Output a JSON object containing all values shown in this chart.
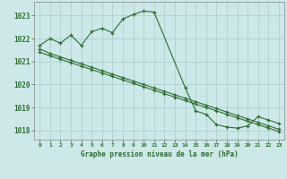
{
  "title": "Graphe pression niveau de la mer (hPa)",
  "bg_color": "#cce8e8",
  "grid_color": "#aacccc",
  "line_color": "#2d6e2d",
  "xlim": [
    -0.5,
    23.5
  ],
  "ylim": [
    1017.6,
    1023.6
  ],
  "yticks": [
    1018,
    1019,
    1020,
    1021,
    1022,
    1023
  ],
  "xticks": [
    0,
    1,
    2,
    3,
    4,
    5,
    6,
    7,
    8,
    9,
    10,
    11,
    12,
    13,
    14,
    15,
    16,
    17,
    18,
    19,
    20,
    21,
    22,
    23
  ],
  "series1_x": [
    0,
    1,
    2,
    3,
    4,
    5,
    6,
    7,
    8,
    9,
    10,
    11,
    14,
    15,
    16,
    17,
    18,
    19,
    20,
    21,
    22,
    23
  ],
  "series1_y": [
    1021.7,
    1022.0,
    1021.8,
    1022.15,
    1021.7,
    1022.3,
    1022.45,
    1022.25,
    1022.85,
    1023.05,
    1023.2,
    1023.15,
    1019.85,
    1018.85,
    1018.7,
    1018.25,
    1018.15,
    1018.1,
    1018.2,
    1018.6,
    1018.45,
    1018.3
  ],
  "series2_x": [
    0,
    1,
    2,
    3,
    4,
    5,
    6,
    7,
    8,
    9,
    10,
    11,
    12,
    13,
    14,
    15,
    16,
    17,
    18,
    19,
    20,
    21,
    22,
    23
  ],
  "series2_y": [
    1021.55,
    1021.35,
    1021.2,
    1021.05,
    1020.9,
    1020.75,
    1020.6,
    1020.45,
    1020.3,
    1020.15,
    1020.0,
    1019.85,
    1019.7,
    1019.55,
    1019.4,
    1019.25,
    1019.1,
    1018.95,
    1018.8,
    1018.65,
    1018.5,
    1018.35,
    1018.2,
    1018.05
  ],
  "series3_x": [
    0,
    1,
    2,
    3,
    4,
    5,
    6,
    7,
    8,
    9,
    10,
    11,
    12,
    13,
    14,
    15,
    16,
    17,
    18,
    19,
    20,
    21,
    22,
    23
  ],
  "series3_y": [
    1021.4,
    1021.25,
    1021.1,
    1020.95,
    1020.8,
    1020.65,
    1020.5,
    1020.35,
    1020.2,
    1020.05,
    1019.9,
    1019.75,
    1019.6,
    1019.45,
    1019.3,
    1019.15,
    1019.0,
    1018.85,
    1018.7,
    1018.55,
    1018.4,
    1018.25,
    1018.1,
    1017.95
  ]
}
